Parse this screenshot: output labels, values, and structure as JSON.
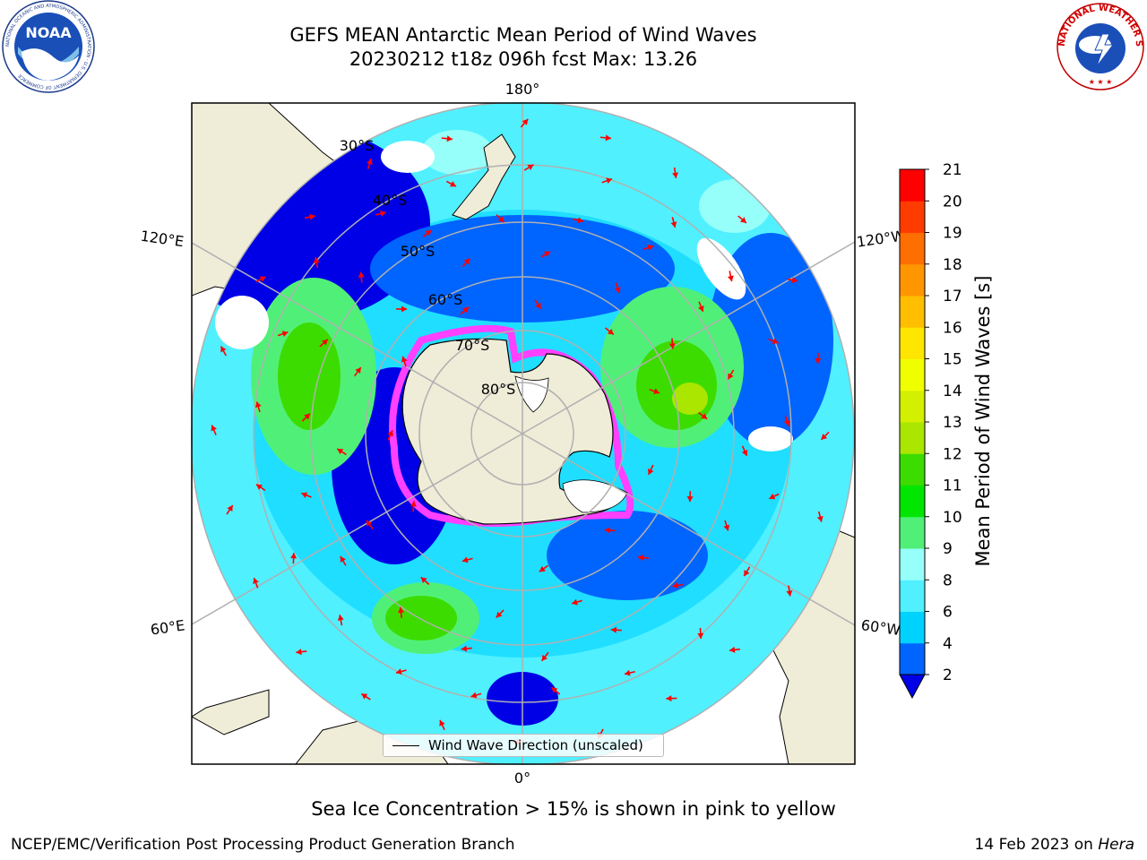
{
  "title": {
    "line1": "GEFS MEAN Antarctic Mean Period of Wind Waves",
    "line2": "20230212 t18z 096h fcst   Max: 13.26"
  },
  "logos": {
    "left": "NOAA",
    "left_ring_text": "NATIONAL OCEANIC AND ATMOSPHERIC ADMINISTRATION · U.S. DEPARTMENT OF COMMERCE",
    "right_ring_text": "NATIONAL WEATHER SERVICE"
  },
  "map": {
    "projection": "south-polar-stereographic",
    "longitude_labels": {
      "top": "180°",
      "bottom": "0°",
      "upper_left": "120°E",
      "lower_left": "60°E",
      "upper_right": "120°W",
      "lower_right": "60°W"
    },
    "latitude_labels": [
      "30°S",
      "40°S",
      "50°S",
      "60°S",
      "70°S",
      "80°S"
    ],
    "legend_entry": "Wind Wave Direction (unscaled)",
    "colors": {
      "land": "#efecd8",
      "sea_ice": "#ff40ff",
      "arrows": "#ff0000",
      "grid": "#b0b0b0"
    }
  },
  "colorbar": {
    "label": "Mean Period of Wind Waves [s]",
    "ticks": [
      "2",
      "4",
      "6",
      "8",
      "9",
      "10",
      "11",
      "12",
      "13",
      "14",
      "15",
      "16",
      "17",
      "18",
      "19",
      "20",
      "21"
    ],
    "colors": [
      "#0064ff",
      "#00d2ff",
      "#50f0ff",
      "#96fffa",
      "#50f078",
      "#00e600",
      "#3cdc00",
      "#aae600",
      "#d2f000",
      "#f0ff00",
      "#ffe600",
      "#ffbe00",
      "#ff9600",
      "#ff6e00",
      "#ff3c00",
      "#ff0000"
    ],
    "under_color": "#0000e6"
  },
  "footer": {
    "ice_note": "Sea Ice Concentration > 15% is shown in pink to yellow",
    "credit": "NCEP/EMC/Verification Post Processing Product Generation Branch",
    "date": "14 Feb 2023 on",
    "machine": "Hera"
  }
}
